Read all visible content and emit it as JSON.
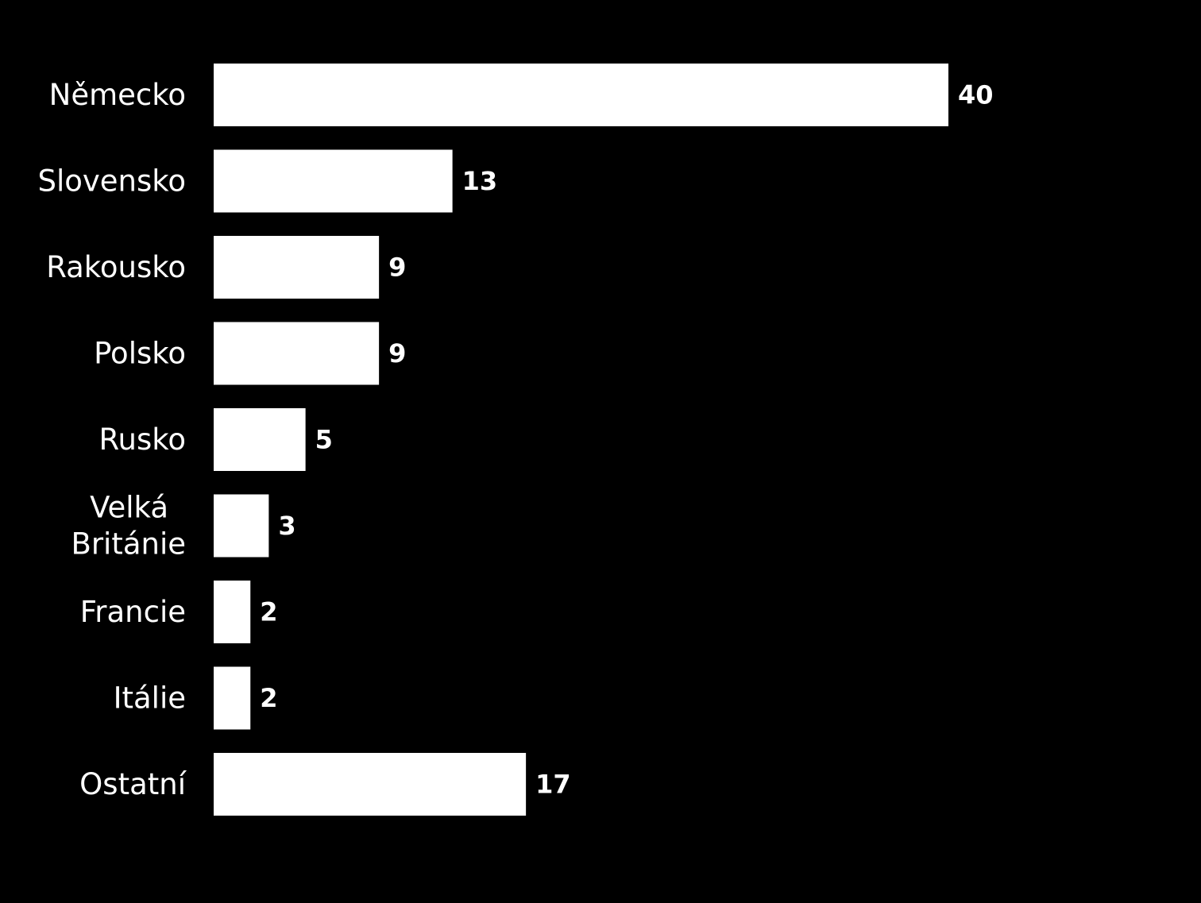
{
  "colors": {
    "background": "#000000",
    "bar": "#ffffff",
    "text": "#ffffff"
  },
  "chart_data": {
    "type": "bar",
    "orientation": "horizontal",
    "categories": [
      "Německo",
      "Slovensko",
      "Rakousko",
      "Polsko",
      "Rusko",
      "Velká Británie",
      "Francie",
      "Itálie",
      "Ostatní"
    ],
    "category_label_lines": [
      [
        "Německo"
      ],
      [
        "Slovensko"
      ],
      [
        "Rakousko"
      ],
      [
        "Polsko"
      ],
      [
        "Rusko"
      ],
      [
        "Velká",
        "Británie"
      ],
      [
        "Francie"
      ],
      [
        "Itálie"
      ],
      [
        "Ostatní"
      ]
    ],
    "values": [
      40,
      13,
      9,
      9,
      5,
      3,
      2,
      2,
      17
    ],
    "value_labels": [
      "40",
      "13",
      "9",
      "9",
      "5",
      "3",
      "2",
      "2",
      "17"
    ],
    "xlim": [
      0,
      40
    ],
    "grid": false,
    "legend": "none",
    "data_labels": "outside-end"
  }
}
